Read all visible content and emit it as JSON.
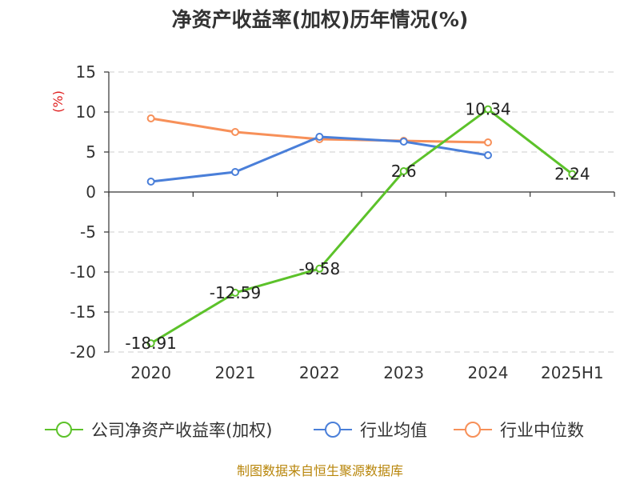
{
  "chart_data": {
    "type": "line",
    "title": "净资产收益率(加权)历年情况(%)",
    "ylabel": "(%)",
    "xlabel": "",
    "categories": [
      "2020",
      "2021",
      "2022",
      "2023",
      "2024",
      "2025H1"
    ],
    "ylim": [
      -20,
      15
    ],
    "yticks": [
      15,
      10,
      5,
      0,
      -5,
      -10,
      -15,
      -20
    ],
    "grid": true,
    "legend_position": "bottom",
    "series": [
      {
        "name": "公司净资产收益率(加权)",
        "color": "#5cc22a",
        "values": [
          -18.91,
          -12.59,
          -9.58,
          2.6,
          10.34,
          2.24
        ],
        "labels": [
          "-18.91",
          "-12.59",
          "-9.58",
          "2.6",
          "10.34",
          "2.24"
        ]
      },
      {
        "name": "行业均值",
        "color": "#4a7fd9",
        "values": [
          1.3,
          2.5,
          6.9,
          6.3,
          4.6,
          null
        ]
      },
      {
        "name": "行业中位数",
        "color": "#f79059",
        "values": [
          9.2,
          7.5,
          6.6,
          6.4,
          6.2,
          null
        ]
      }
    ]
  },
  "source": "制图数据来自恒生聚源数据库"
}
